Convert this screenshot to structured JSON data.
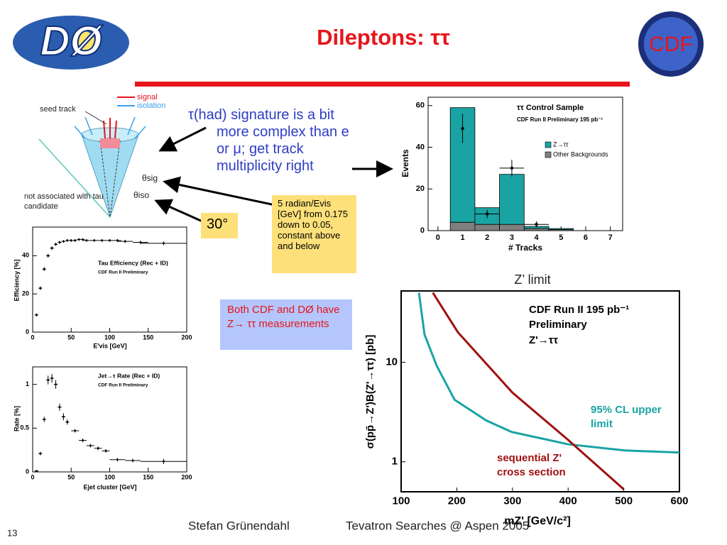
{
  "header": {
    "title": "Dileptons: ττ",
    "logo_left": "DØ",
    "logo_right": "CDF"
  },
  "diagram": {
    "signal": "signal",
    "isolation": "isolation",
    "seed_track": "seed track",
    "not_associated": "not associated with tau candidate",
    "theta_sig": "θsig",
    "theta_iso": "θiso"
  },
  "bullet": "τ(had) signature is a bit more complex than e or μ; get track multiplicity right",
  "note": "5 radian/Evis [GeV] from 0.175 down to 0.05, constant above and below",
  "angle": "30°",
  "callout": "Both CDF and DØ have Z→ ττ measurements",
  "limit_title": "Z’ limit",
  "footer": {
    "author": "Stefan Grünendahl",
    "talk": "Tevatron Searches @ Aspen 2005",
    "page": "13"
  },
  "chart_data": [
    {
      "type": "histogram",
      "title": "ττ Control Sample",
      "subtitle": "CDF Run II Preliminary 195 pb⁻¹",
      "x_label": "# Tracks",
      "y_label": "Events",
      "bins": [
        0.5,
        1.5,
        2.5,
        3.5,
        4.5,
        5.5
      ],
      "series": [
        {
          "name": "Z→ττ",
          "color": "#1aa3a3",
          "values": [
            55,
            8,
            24,
            1,
            0.5
          ]
        },
        {
          "name": "Other Backgrounds",
          "color": "#7f7f7f",
          "values": [
            4,
            3,
            3,
            1,
            0.5
          ]
        }
      ],
      "points": {
        "x": [
          1,
          2,
          3,
          4
        ],
        "values": [
          49,
          8,
          30,
          3
        ],
        "errors": [
          7,
          2,
          4,
          1.5
        ],
        "xerrors": [
          0,
          0.5,
          0.5,
          0.5
        ]
      },
      "xlim": [
        -0.4,
        7.5
      ],
      "xticks": [
        0,
        1,
        2,
        3,
        4,
        5,
        6,
        7
      ],
      "ylim": [
        0,
        64
      ],
      "yticks": [
        0,
        20,
        40,
        60
      ]
    },
    {
      "type": "scatter",
      "title": "Tau Efficiency (Rec + ID)",
      "subtitle": "CDF Run II Preliminary",
      "x_label": "E'vis [GeV]",
      "y_label": "Efficiency  [%]",
      "x": [
        5,
        10,
        15,
        20,
        25,
        30,
        35,
        40,
        45,
        50,
        55,
        60,
        65,
        70,
        80,
        90,
        100,
        110,
        120,
        140,
        170
      ],
      "values": [
        9,
        23,
        33,
        40,
        44,
        46,
        47,
        47.5,
        48,
        48,
        48,
        48.5,
        48.5,
        48,
        48,
        48,
        48,
        48,
        47.5,
        47,
        46.5
      ],
      "errors": [
        0.8,
        1,
        1,
        1,
        1,
        0.8,
        0.8,
        0.7,
        0.7,
        0.7,
        0.7,
        0.7,
        0.7,
        0.7,
        0.7,
        0.7,
        0.7,
        0.8,
        0.8,
        0.8,
        1
      ],
      "xerrors": [
        2.5,
        2.5,
        2.5,
        2.5,
        2.5,
        2.5,
        2.5,
        2.5,
        2.5,
        2.5,
        2.5,
        2.5,
        2.5,
        5,
        5,
        5,
        5,
        5,
        10,
        10,
        30
      ],
      "xlim": [
        0,
        200
      ],
      "xticks": [
        0,
        50,
        100,
        150,
        200
      ],
      "ylim": [
        0,
        55
      ],
      "yticks": [
        0,
        20,
        40
      ]
    },
    {
      "type": "scatter",
      "title": "Jet→τ Rate (Rec + ID)",
      "subtitle": "CDF Run II Preliminary",
      "x_label": "Ejet cluster  [GeV]",
      "y_label": "Rate  [%]",
      "x": [
        5,
        10,
        15,
        20,
        25,
        30,
        35,
        40,
        45,
        55,
        65,
        75,
        85,
        95,
        110,
        130,
        170
      ],
      "values": [
        0.01,
        0.21,
        0.6,
        1.05,
        1.07,
        1.0,
        0.74,
        0.63,
        0.57,
        0.47,
        0.36,
        0.3,
        0.27,
        0.24,
        0.14,
        0.13,
        0.12
      ],
      "errors": [
        0.01,
        0.02,
        0.03,
        0.05,
        0.05,
        0.05,
        0.04,
        0.04,
        0.03,
        0.02,
        0.02,
        0.02,
        0.02,
        0.02,
        0.02,
        0.02,
        0.03
      ],
      "xerrors": [
        2.5,
        2.5,
        2.5,
        2.5,
        2.5,
        2.5,
        2.5,
        2.5,
        2.5,
        5,
        5,
        5,
        5,
        5,
        10,
        10,
        30
      ],
      "xlim": [
        0,
        200
      ],
      "xticks": [
        0,
        50,
        100,
        150,
        200
      ],
      "ylim": [
        0,
        1.2
      ],
      "yticks": [
        0,
        0.5,
        1
      ]
    },
    {
      "type": "line",
      "log_y": true,
      "x_label": "mZ'  [GeV/c²]",
      "y_label": "σ(pp̄→Z')B(Z'→ττ)  [pb]",
      "annotations": [
        "CDF Run II  195 pb⁻¹",
        "Preliminary",
        "Z'→ττ"
      ],
      "series": [
        {
          "name": "95% CL upper limit",
          "color": "#1aa3a3",
          "x": [
            132,
            142,
            164,
            196,
            253,
            298,
            400,
            502,
            600
          ],
          "values": [
            50,
            19,
            9.2,
            4.2,
            2.6,
            2.0,
            1.5,
            1.3,
            1.24
          ]
        },
        {
          "name": "sequential Z' cross section",
          "color": "#a01010",
          "x": [
            157,
            202,
            300,
            400,
            500
          ],
          "values": [
            50,
            20,
            4.95,
            1.66,
            0.53
          ]
        }
      ],
      "xlim": [
        100,
        600
      ],
      "xticks": [
        100,
        200,
        300,
        400,
        500,
        600
      ],
      "ylim": [
        0.5,
        52
      ],
      "yticks": [
        1,
        10
      ]
    }
  ]
}
